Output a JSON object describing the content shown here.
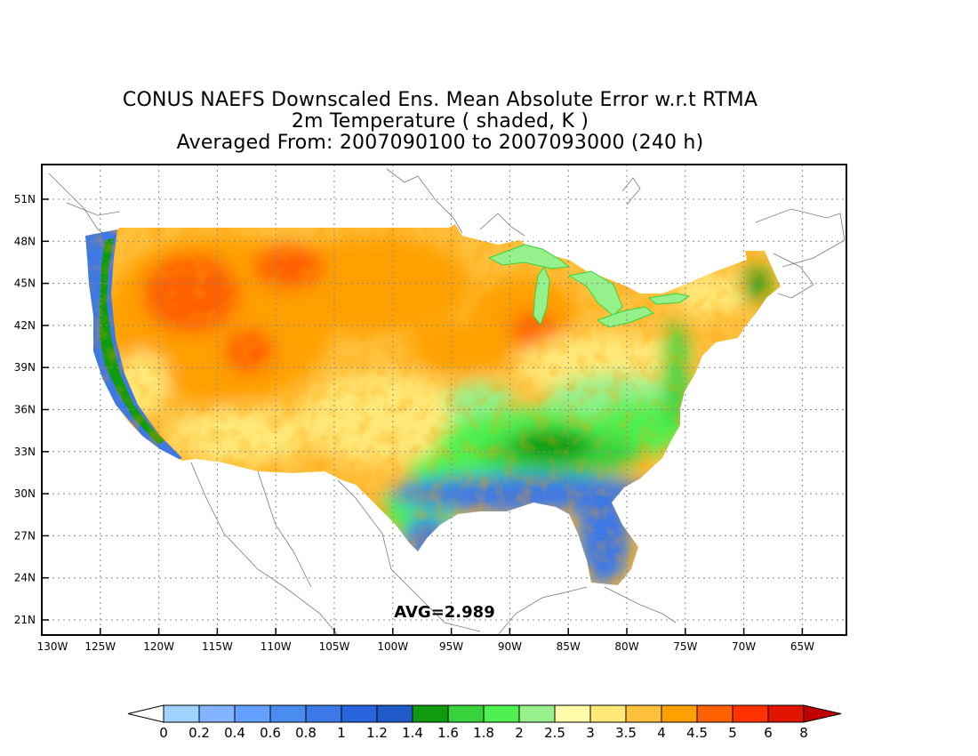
{
  "title": {
    "line1": "CONUS NAEFS Downscaled Ens. Mean Absolute Error w.r.t RTMA",
    "line2": "2m Temperature ( shaded, K )",
    "line3": "Averaged From: 2007090100 to 2007093000 (240 h)"
  },
  "map": {
    "lat_labels": [
      "51N",
      "48N",
      "45N",
      "42N",
      "39N",
      "36N",
      "33N",
      "30N",
      "27N",
      "24N",
      "21N"
    ],
    "lon_labels": [
      "130W",
      "125W",
      "120W",
      "115W",
      "110W",
      "105W",
      "100W",
      "95W",
      "90W",
      "85W",
      "80W",
      "75W",
      "70W",
      "65W"
    ],
    "avg_label": "AVG=2.989"
  },
  "colorbar": {
    "labels": [
      "0",
      "0.2",
      "0.4",
      "0.6",
      "0.8",
      "1",
      "1.2",
      "1.4",
      "1.6",
      "1.8",
      "2",
      "2.5",
      "3",
      "3.5",
      "4",
      "4.5",
      "5",
      "6",
      "8"
    ],
    "colors": [
      "#a0d2ff",
      "#82b4ff",
      "#64a0ff",
      "#4b8cf0",
      "#3c78e6",
      "#2864dc",
      "#1e5ac8",
      "#0f9b0f",
      "#37d23c",
      "#50f050",
      "#96f08c",
      "#fffaaa",
      "#ffe878",
      "#ffc03c",
      "#ffa000",
      "#ff6000",
      "#ff3200",
      "#e11400",
      "#c00000"
    ]
  }
}
